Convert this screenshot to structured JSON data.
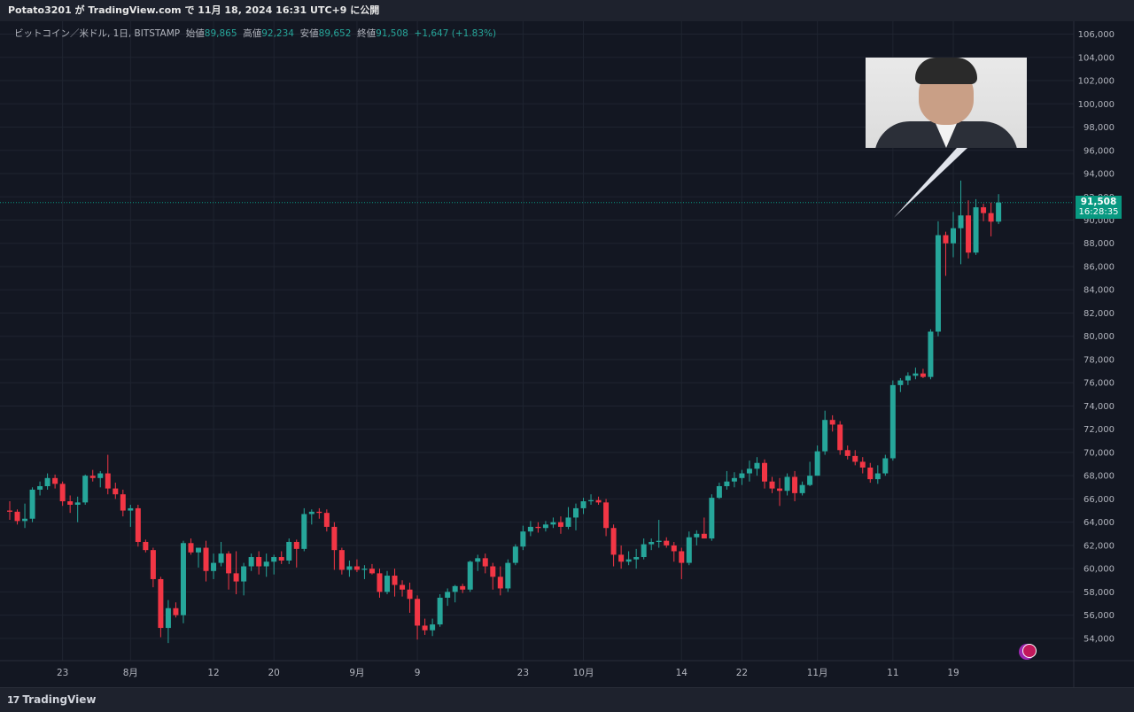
{
  "header": {
    "title": "Potato3201 が TradingView.com で 11月 18, 2024 16:31 UTC+9 に公開"
  },
  "legend": {
    "symbol": "ビットコイン／米ドル, 1日, BITSTAMP",
    "open_label": "始値",
    "open": "89,865",
    "high_label": "高値",
    "high": "92,234",
    "low_label": "安値",
    "low": "89,652",
    "close_label": "終値",
    "close": "91,508",
    "change": "+1,647 (+1.83%)"
  },
  "price_tag": {
    "price": "91,508",
    "countdown": "16:28:35"
  },
  "footer": {
    "brand": "TradingView",
    "mark": "17"
  },
  "colors": {
    "up": "#26a69a",
    "down": "#f23645",
    "grid": "#1f2430",
    "background": "#131722"
  },
  "chart_data": {
    "type": "candlestick",
    "y_axis_labels": [
      "54,000",
      "56,000",
      "58,000",
      "60,000",
      "62,000",
      "64,000",
      "66,000",
      "68,000",
      "70,000",
      "72,000",
      "74,000",
      "76,000",
      "78,000",
      "80,000",
      "82,000",
      "84,000",
      "86,000",
      "88,000",
      "90,000",
      "92,000",
      "94,000",
      "96,000",
      "98,000",
      "100,000",
      "102,000",
      "104,000",
      "106,000"
    ],
    "ylim": [
      53000,
      106500
    ],
    "x_tick_labels": [
      {
        "label": "23",
        "index": 7
      },
      {
        "label": "8月",
        "index": 16
      },
      {
        "label": "12",
        "index": 27
      },
      {
        "label": "20",
        "index": 35
      },
      {
        "label": "9月",
        "index": 46
      },
      {
        "label": "9",
        "index": 54
      },
      {
        "label": "23",
        "index": 68
      },
      {
        "label": "10月",
        "index": 76
      },
      {
        "label": "14",
        "index": 89
      },
      {
        "label": "22",
        "index": 97
      },
      {
        "label": "11月",
        "index": 107
      },
      {
        "label": "11",
        "index": 117
      },
      {
        "label": "19",
        "index": 125
      }
    ],
    "last_price": 91508,
    "candles": [
      [
        65000,
        65800,
        64200,
        64900
      ],
      [
        64900,
        65100,
        63800,
        64100
      ],
      [
        64100,
        65600,
        63500,
        64300
      ],
      [
        64300,
        67000,
        64000,
        66800
      ],
      [
        66800,
        67500,
        66300,
        67100
      ],
      [
        67100,
        68200,
        66800,
        67800
      ],
      [
        67800,
        68100,
        66900,
        67300
      ],
      [
        67300,
        67500,
        65400,
        65800
      ],
      [
        65800,
        66300,
        64800,
        65500
      ],
      [
        65500,
        66200,
        64000,
        65700
      ],
      [
        65700,
        68100,
        65500,
        68000
      ],
      [
        68000,
        68500,
        67500,
        67800
      ],
      [
        67800,
        68400,
        67000,
        68200
      ],
      [
        68200,
        69800,
        66400,
        66900
      ],
      [
        66900,
        67400,
        66000,
        66400
      ],
      [
        66400,
        66800,
        64500,
        65000
      ],
      [
        65000,
        65500,
        63600,
        65200
      ],
      [
        65200,
        65500,
        61900,
        62300
      ],
      [
        62300,
        62500,
        61400,
        61600
      ],
      [
        61600,
        61800,
        58400,
        59100
      ],
      [
        59100,
        59300,
        54100,
        54900
      ],
      [
        54900,
        57300,
        53600,
        56600
      ],
      [
        56600,
        57100,
        55800,
        56000
      ],
      [
        56000,
        62400,
        55300,
        62200
      ],
      [
        62200,
        62600,
        61200,
        61400
      ],
      [
        61400,
        61700,
        60100,
        61800
      ],
      [
        61800,
        62400,
        58900,
        59800
      ],
      [
        59800,
        61300,
        59100,
        60500
      ],
      [
        60500,
        62300,
        60200,
        61300
      ],
      [
        61300,
        61500,
        58200,
        59600
      ],
      [
        59600,
        61500,
        57800,
        58900
      ],
      [
        58900,
        60500,
        57700,
        60200
      ],
      [
        60200,
        61300,
        59800,
        61000
      ],
      [
        61000,
        61500,
        59500,
        60200
      ],
      [
        60200,
        61300,
        59300,
        60600
      ],
      [
        60600,
        61200,
        59500,
        61000
      ],
      [
        61000,
        61500,
        60400,
        60700
      ],
      [
        60700,
        62600,
        60400,
        62300
      ],
      [
        62300,
        62500,
        60100,
        61700
      ],
      [
        61700,
        65200,
        61500,
        64700
      ],
      [
        64700,
        65100,
        63800,
        64900
      ],
      [
        64900,
        65200,
        64300,
        64800
      ],
      [
        64800,
        65100,
        63200,
        63600
      ],
      [
        63600,
        64000,
        59900,
        61600
      ],
      [
        61600,
        61800,
        59500,
        59900
      ],
      [
        59900,
        60700,
        59300,
        60200
      ],
      [
        60200,
        60800,
        59700,
        59900
      ],
      [
        59900,
        60300,
        59100,
        60000
      ],
      [
        60000,
        60400,
        59500,
        59600
      ],
      [
        59600,
        60000,
        57500,
        58000
      ],
      [
        58000,
        59800,
        57800,
        59400
      ],
      [
        59400,
        60000,
        57600,
        58600
      ],
      [
        58600,
        59000,
        57600,
        58200
      ],
      [
        58200,
        58800,
        56200,
        57400
      ],
      [
        57400,
        57700,
        53900,
        55100
      ],
      [
        55100,
        55700,
        54300,
        54700
      ],
      [
        54700,
        55700,
        54200,
        55200
      ],
      [
        55200,
        57800,
        55000,
        57500
      ],
      [
        57500,
        58300,
        56800,
        58000
      ],
      [
        58000,
        58600,
        57100,
        58500
      ],
      [
        58500,
        58700,
        57900,
        58200
      ],
      [
        58200,
        60700,
        58000,
        60600
      ],
      [
        60600,
        61200,
        59800,
        60900
      ],
      [
        60900,
        61300,
        59600,
        60200
      ],
      [
        60200,
        60500,
        58200,
        59300
      ],
      [
        59300,
        60200,
        57700,
        58300
      ],
      [
        58300,
        60800,
        58000,
        60500
      ],
      [
        60500,
        62100,
        60300,
        61900
      ],
      [
        61900,
        63700,
        61600,
        63200
      ],
      [
        63200,
        64100,
        62800,
        63600
      ],
      [
        63600,
        64000,
        63100,
        63500
      ],
      [
        63500,
        64100,
        63200,
        63800
      ],
      [
        63800,
        64400,
        63500,
        64000
      ],
      [
        64000,
        64500,
        63000,
        63600
      ],
      [
        63600,
        65300,
        63400,
        64400
      ],
      [
        64400,
        65600,
        63300,
        65200
      ],
      [
        65200,
        66100,
        64700,
        65800
      ],
      [
        65800,
        66400,
        65500,
        65900
      ],
      [
        65900,
        66200,
        65500,
        65700
      ],
      [
        65700,
        66000,
        62800,
        63500
      ],
      [
        63500,
        63800,
        60200,
        61200
      ],
      [
        61200,
        62000,
        60000,
        60600
      ],
      [
        60600,
        61500,
        60300,
        60800
      ],
      [
        60800,
        61700,
        60000,
        61000
      ],
      [
        61000,
        62600,
        60800,
        62100
      ],
      [
        62100,
        62600,
        61600,
        62300
      ],
      [
        62300,
        64200,
        61800,
        62400
      ],
      [
        62400,
        62700,
        61800,
        62000
      ],
      [
        62000,
        62300,
        60600,
        61500
      ],
      [
        61500,
        61800,
        59100,
        60500
      ],
      [
        60500,
        63200,
        60300,
        62700
      ],
      [
        62700,
        63300,
        62000,
        63000
      ],
      [
        63000,
        64400,
        62600,
        62600
      ],
      [
        62600,
        66400,
        62400,
        66100
      ],
      [
        66100,
        67400,
        66000,
        67100
      ],
      [
        67100,
        68400,
        66800,
        67500
      ],
      [
        67500,
        68300,
        67000,
        67800
      ],
      [
        67800,
        68500,
        67200,
        68200
      ],
      [
        68200,
        69300,
        67500,
        68600
      ],
      [
        68600,
        69600,
        68000,
        69100
      ],
      [
        69100,
        69400,
        66900,
        67500
      ],
      [
        67500,
        67900,
        66500,
        66900
      ],
      [
        66900,
        67800,
        65400,
        66700
      ],
      [
        66700,
        68200,
        66300,
        67900
      ],
      [
        67900,
        68400,
        65800,
        66500
      ],
      [
        66500,
        67500,
        66300,
        67200
      ],
      [
        67200,
        69200,
        67100,
        68000
      ],
      [
        68000,
        70600,
        68000,
        70100
      ],
      [
        70100,
        73600,
        69800,
        72800
      ],
      [
        72800,
        73200,
        71800,
        72400
      ],
      [
        72400,
        72700,
        69800,
        70200
      ],
      [
        70200,
        70600,
        69400,
        69700
      ],
      [
        69700,
        70200,
        68900,
        69200
      ],
      [
        69200,
        69600,
        68200,
        68700
      ],
      [
        68700,
        69100,
        67400,
        67700
      ],
      [
        67700,
        68900,
        67300,
        68200
      ],
      [
        68200,
        69800,
        68000,
        69500
      ],
      [
        69500,
        76200,
        69300,
        75800
      ],
      [
        75800,
        76400,
        75200,
        76200
      ],
      [
        76200,
        76900,
        75800,
        76600
      ],
      [
        76600,
        77300,
        76300,
        76800
      ],
      [
        76800,
        77200,
        76400,
        76500
      ],
      [
        76500,
        80600,
        76300,
        80400
      ],
      [
        80400,
        89900,
        80000,
        88700
      ],
      [
        88700,
        89000,
        85200,
        88000
      ],
      [
        88000,
        90700,
        86800,
        89300
      ],
      [
        89300,
        93400,
        86200,
        90400
      ],
      [
        90400,
        91700,
        86700,
        87200
      ],
      [
        87200,
        91800,
        87000,
        91100
      ],
      [
        91100,
        91400,
        89900,
        90600
      ],
      [
        90600,
        91500,
        88600,
        89865
      ],
      [
        89865,
        92234,
        89652,
        91508
      ]
    ]
  }
}
